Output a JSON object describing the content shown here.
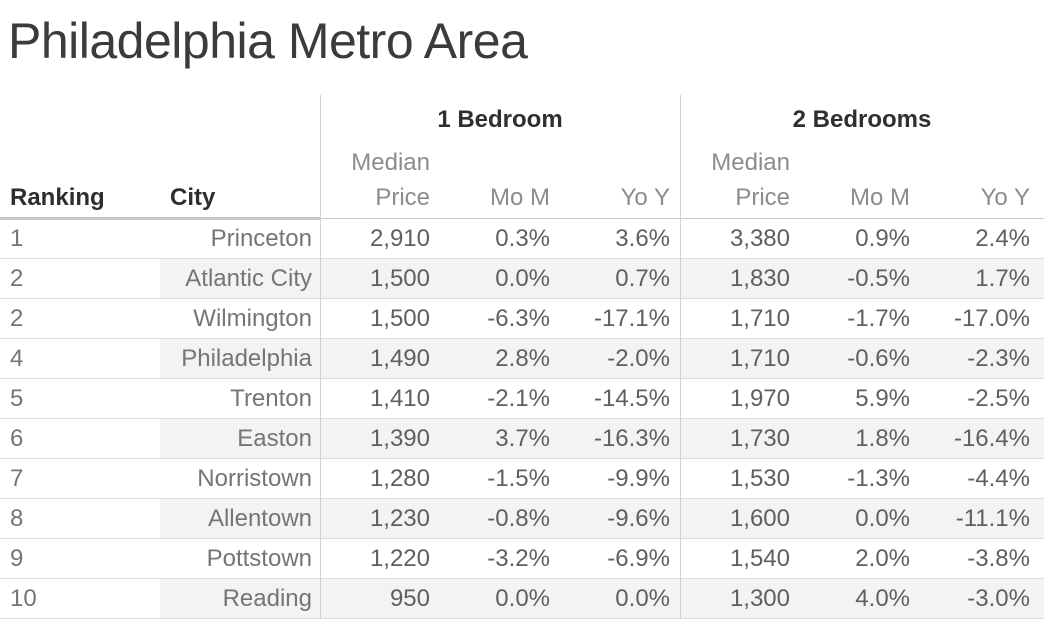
{
  "title": "Philadelphia Metro Area",
  "table": {
    "ranking_header": "Ranking",
    "city_header": "City",
    "groups": [
      {
        "label": "1 Bedroom"
      },
      {
        "label": "2 Bedrooms"
      }
    ],
    "sub_headers": {
      "median_line1": "Median",
      "median_line2": "Price",
      "mom": "Mo M",
      "yoy": "Yo Y"
    },
    "rows": [
      {
        "ranking": "1",
        "city": "Princeton",
        "bed1_price": "2,910",
        "bed1_mom": "0.3%",
        "bed1_yoy": "3.6%",
        "bed2_price": "3,380",
        "bed2_mom": "0.9%",
        "bed2_yoy": "2.4%"
      },
      {
        "ranking": "2",
        "city": "Atlantic City",
        "bed1_price": "1,500",
        "bed1_mom": "0.0%",
        "bed1_yoy": "0.7%",
        "bed2_price": "1,830",
        "bed2_mom": "-0.5%",
        "bed2_yoy": "1.7%"
      },
      {
        "ranking": "2",
        "city": "Wilmington",
        "bed1_price": "1,500",
        "bed1_mom": "-6.3%",
        "bed1_yoy": "-17.1%",
        "bed2_price": "1,710",
        "bed2_mom": "-1.7%",
        "bed2_yoy": "-17.0%"
      },
      {
        "ranking": "4",
        "city": "Philadelphia",
        "bed1_price": "1,490",
        "bed1_mom": "2.8%",
        "bed1_yoy": "-2.0%",
        "bed2_price": "1,710",
        "bed2_mom": "-0.6%",
        "bed2_yoy": "-2.3%"
      },
      {
        "ranking": "5",
        "city": "Trenton",
        "bed1_price": "1,410",
        "bed1_mom": "-2.1%",
        "bed1_yoy": "-14.5%",
        "bed2_price": "1,970",
        "bed2_mom": "5.9%",
        "bed2_yoy": "-2.5%"
      },
      {
        "ranking": "6",
        "city": "Easton",
        "bed1_price": "1,390",
        "bed1_mom": "3.7%",
        "bed1_yoy": "-16.3%",
        "bed2_price": "1,730",
        "bed2_mom": "1.8%",
        "bed2_yoy": "-16.4%"
      },
      {
        "ranking": "7",
        "city": "Norristown",
        "bed1_price": "1,280",
        "bed1_mom": "-1.5%",
        "bed1_yoy": "-9.9%",
        "bed2_price": "1,530",
        "bed2_mom": "-1.3%",
        "bed2_yoy": "-4.4%"
      },
      {
        "ranking": "8",
        "city": "Allentown",
        "bed1_price": "1,230",
        "bed1_mom": "-0.8%",
        "bed1_yoy": "-9.6%",
        "bed2_price": "1,600",
        "bed2_mom": "0.0%",
        "bed2_yoy": "-11.1%"
      },
      {
        "ranking": "9",
        "city": "Pottstown",
        "bed1_price": "1,220",
        "bed1_mom": "-3.2%",
        "bed1_yoy": "-6.9%",
        "bed2_price": "1,540",
        "bed2_mom": "2.0%",
        "bed2_yoy": "-3.8%"
      },
      {
        "ranking": "10",
        "city": "Reading",
        "bed1_price": "950",
        "bed1_mom": "0.0%",
        "bed1_yoy": "0.0%",
        "bed2_price": "1,300",
        "bed2_mom": "4.0%",
        "bed2_yoy": "-3.0%"
      }
    ]
  },
  "colors": {
    "title_text": "#3b3b3b",
    "header_text": "#2f2f2f",
    "subheader_text": "#8c8c8c",
    "data_text": "#5f5f5f",
    "label_text": "#757575",
    "stripe": "#f3f3f3",
    "row_border": "#dcdcdc",
    "divider": "#d2d2d2"
  },
  "chart_data": {
    "type": "table",
    "title": "Philadelphia Metro Area",
    "column_groups": [
      {
        "label": "1 Bedroom",
        "columns": [
          "Median Price",
          "Mo M",
          "Yo Y"
        ]
      },
      {
        "label": "2 Bedrooms",
        "columns": [
          "Median Price",
          "Mo M",
          "Yo Y"
        ]
      }
    ],
    "columns": [
      "Ranking",
      "City",
      "1 Bedroom Median Price",
      "1 Bedroom Mo M",
      "1 Bedroom Yo Y",
      "2 Bedrooms Median Price",
      "2 Bedrooms Mo M",
      "2 Bedrooms Yo Y"
    ],
    "rows": [
      [
        1,
        "Princeton",
        2910,
        0.3,
        3.6,
        3380,
        0.9,
        2.4
      ],
      [
        2,
        "Atlantic City",
        1500,
        0.0,
        0.7,
        1830,
        -0.5,
        1.7
      ],
      [
        2,
        "Wilmington",
        1500,
        -6.3,
        -17.1,
        1710,
        -1.7,
        -17.0
      ],
      [
        4,
        "Philadelphia",
        1490,
        2.8,
        -2.0,
        1710,
        -0.6,
        -2.3
      ],
      [
        5,
        "Trenton",
        1410,
        -2.1,
        -14.5,
        1970,
        5.9,
        -2.5
      ],
      [
        6,
        "Easton",
        1390,
        3.7,
        -16.3,
        1730,
        1.8,
        -16.4
      ],
      [
        7,
        "Norristown",
        1280,
        -1.5,
        -9.9,
        1530,
        -1.3,
        -4.4
      ],
      [
        8,
        "Allentown",
        1230,
        -0.8,
        -9.6,
        1600,
        0.0,
        -11.1
      ],
      [
        9,
        "Pottstown",
        1220,
        -3.2,
        -6.9,
        1540,
        2.0,
        -3.8
      ],
      [
        10,
        "Reading",
        950,
        0.0,
        0.0,
        1300,
        4.0,
        -3.0
      ]
    ],
    "layout_hints": {
      "zebra_striping": true,
      "percent_columns_one_decimal": true,
      "prices_comma_separated": true
    }
  }
}
